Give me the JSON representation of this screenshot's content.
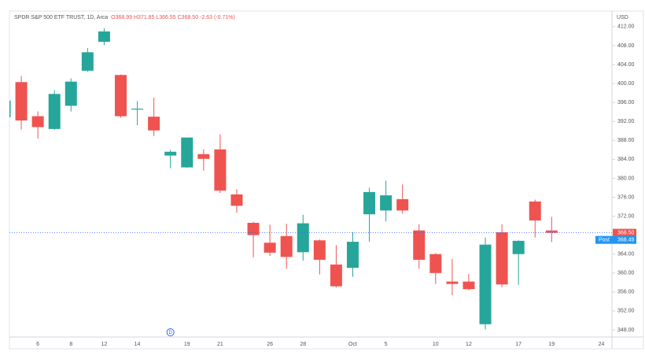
{
  "chart_data": {
    "type": "candlestick",
    "header": {
      "title": "SPDR S&P 500 ETF TRUST, 1D, Arca",
      "ohlc": "O368.99 H371.85 L366.55 C368.50 -2.63 (-0.71%)"
    },
    "currency": "USD",
    "marker": "D",
    "categories": [
      null,
      null,
      "6",
      null,
      "8",
      null,
      "12",
      null,
      "14",
      null,
      null,
      "19",
      null,
      "21",
      null,
      null,
      "26",
      null,
      "28",
      null,
      null,
      "Oct",
      null,
      "5",
      null,
      null,
      "10",
      null,
      "12",
      null,
      null,
      "17",
      null,
      "19",
      null,
      null,
      "24"
    ],
    "open": [
      392.9,
      400.3,
      393.1,
      390.4,
      395.3,
      402.7,
      408.8,
      401.8,
      394.5,
      393.0,
      384.8,
      382.3,
      385.1,
      386.1,
      376.6,
      370.6,
      366.4,
      367.8,
      364.4,
      366.9,
      361.8,
      361.1,
      372.4,
      373.2,
      375.6,
      369.0,
      364.0,
      358.2,
      358.2,
      349.2,
      368.6,
      364.0,
      375.1,
      368.99,
      null,
      null,
      null
    ],
    "high": [
      396.8,
      401.6,
      394.1,
      398.6,
      401.1,
      407.5,
      411.7,
      401.9,
      396.3,
      397.0,
      386.0,
      388.5,
      386.1,
      389.3,
      377.7,
      370.8,
      370.2,
      370.4,
      372.3,
      367.1,
      365.9,
      368.6,
      378.0,
      379.5,
      378.7,
      370.3,
      364.2,
      363.0,
      359.8,
      367.5,
      370.3,
      366.9,
      375.5,
      371.85,
      null,
      null,
      null
    ],
    "low": [
      390.0,
      390.3,
      388.4,
      390.2,
      394.1,
      402.5,
      408.1,
      392.8,
      391.2,
      388.9,
      382.1,
      382.2,
      381.6,
      376.9,
      372.7,
      363.3,
      363.6,
      360.9,
      362.6,
      359.7,
      357.0,
      359.2,
      366.6,
      370.9,
      372.5,
      360.9,
      357.7,
      355.3,
      356.4,
      348.1,
      357.0,
      357.5,
      367.5,
      366.55,
      null,
      null,
      null
    ],
    "close": [
      396.4,
      392.2,
      390.8,
      397.8,
      400.4,
      406.6,
      411.0,
      393.1,
      394.7,
      390.1,
      385.6,
      388.6,
      384.1,
      377.4,
      374.2,
      368.0,
      364.3,
      363.4,
      370.5,
      362.8,
      357.2,
      366.6,
      377.1,
      376.4,
      373.2,
      362.8,
      360.0,
      357.7,
      356.6,
      366.0,
      357.6,
      366.8,
      371.1,
      368.5,
      null,
      null,
      null
    ],
    "up_color": "#26a69a",
    "down_color": "#ef5350",
    "ylim": [
      346.5,
      415.3
    ],
    "yticks": [
      {
        "value": 348,
        "label": "348.00"
      },
      {
        "value": 352,
        "label": "352.00"
      },
      {
        "value": 356,
        "label": "356.00"
      },
      {
        "value": 360,
        "label": "360.00"
      },
      {
        "value": 364,
        "label": "364.00"
      },
      {
        "value": 368,
        "label": "368.00"
      },
      {
        "value": 372,
        "label": "372.00"
      },
      {
        "value": 376,
        "label": "376.00"
      },
      {
        "value": 380,
        "label": "380.00"
      },
      {
        "value": 384,
        "label": "384.00"
      },
      {
        "value": 388,
        "label": "388.00"
      },
      {
        "value": 392,
        "label": "392.00"
      },
      {
        "value": 396,
        "label": "396.00"
      },
      {
        "value": 400,
        "label": "400.00"
      },
      {
        "value": 404,
        "label": "404.00"
      },
      {
        "value": 408,
        "label": "408.00"
      },
      {
        "value": 412,
        "label": "412.00"
      }
    ],
    "price_line": {
      "value": 368.5,
      "label": "368.50"
    },
    "post": {
      "text": "Post",
      "value": 368.49,
      "label": "368.49"
    }
  }
}
